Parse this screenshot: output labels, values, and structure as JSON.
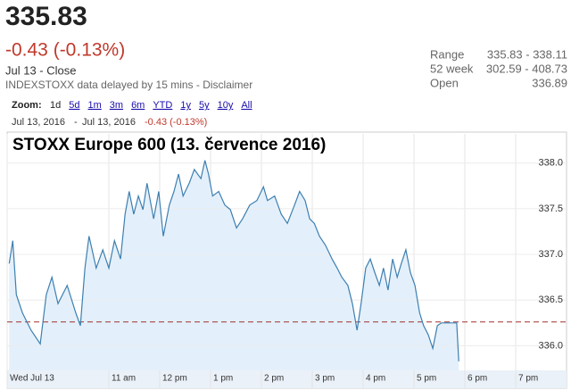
{
  "header": {
    "price": "335.83",
    "change": "-0.43 (-0.13%)",
    "close_label": "Jul 13 - Close",
    "source": "INDEXSTOXX data delayed by 15 mins - ",
    "disclaimer": "Disclaimer",
    "stats": [
      {
        "label": "Range",
        "value": "335.83 - 338.11"
      },
      {
        "label": "52 week",
        "value": "302.59 - 408.73"
      },
      {
        "label": "Open",
        "value": "336.89"
      }
    ]
  },
  "toolbar": {
    "zoom_label": "Zoom:",
    "zoom_options": [
      "1d",
      "5d",
      "1m",
      "3m",
      "6m",
      "YTD",
      "1y",
      "5y",
      "10y",
      "All"
    ],
    "date_from": "Jul 13, 2016",
    "date_sep": "-",
    "date_to": "Jul 13, 2016",
    "change": "-0.43 (-0.13%)"
  },
  "chart_data": {
    "type": "line",
    "title": "STOXX Europe 600 (13. července 2016)",
    "series": [
      {
        "color": "#3d7fb0",
        "x": [
          9.04,
          9.11,
          9.18,
          9.3,
          9.47,
          9.65,
          9.77,
          9.88,
          10.0,
          10.18,
          10.35,
          10.44,
          10.53,
          10.61,
          10.75,
          10.88,
          11.0,
          11.11,
          11.23,
          11.32,
          11.4,
          11.49,
          11.58,
          11.67,
          11.75,
          11.88,
          11.98,
          12.07,
          12.19,
          12.28,
          12.37,
          12.46,
          12.58,
          12.68,
          12.81,
          12.89,
          12.96,
          13.04,
          13.16,
          13.28,
          13.39,
          13.51,
          13.63,
          13.77,
          13.91,
          14.04,
          14.12,
          14.26,
          14.39,
          14.51,
          14.65,
          14.75,
          14.86,
          14.95,
          15.04,
          15.14,
          15.26,
          15.39,
          15.49,
          15.58,
          15.7,
          15.79,
          15.88,
          15.96,
          16.05,
          16.14,
          16.23,
          16.32,
          16.4,
          16.49,
          16.58,
          16.67,
          16.75,
          16.84,
          16.93,
          17.02,
          17.11,
          17.19,
          17.28,
          17.37,
          17.46,
          17.54,
          17.84,
          17.88
        ],
        "values": [
          336.9,
          337.15,
          336.56,
          336.36,
          336.17,
          336.02,
          336.56,
          336.75,
          336.46,
          336.66,
          336.36,
          336.22,
          336.85,
          337.2,
          336.85,
          337.05,
          336.85,
          337.15,
          336.95,
          337.44,
          337.69,
          337.44,
          337.64,
          337.49,
          337.78,
          337.39,
          337.69,
          337.2,
          337.54,
          337.69,
          337.88,
          337.64,
          337.78,
          337.93,
          337.83,
          338.03,
          337.88,
          337.64,
          337.69,
          337.54,
          337.49,
          337.29,
          337.39,
          337.54,
          337.59,
          337.74,
          337.59,
          337.64,
          337.44,
          337.34,
          337.54,
          337.69,
          337.59,
          337.39,
          337.34,
          337.2,
          337.1,
          336.95,
          336.85,
          336.75,
          336.66,
          336.46,
          336.17,
          336.46,
          336.85,
          336.95,
          336.8,
          336.66,
          336.85,
          336.61,
          336.95,
          336.75,
          336.9,
          337.05,
          336.8,
          336.66,
          336.36,
          336.22,
          336.12,
          335.97,
          336.22,
          336.25,
          336.25,
          335.83
        ]
      }
    ],
    "fill_color": "#e3f0fb",
    "reference_line": 336.26,
    "reference_color": "#a0312f",
    "xlim": [
      9,
      20
    ],
    "xticks": [
      {
        "value": 9,
        "label": "Wed Jul 13"
      },
      {
        "value": 11,
        "label": "11 am"
      },
      {
        "value": 12,
        "label": "12 pm"
      },
      {
        "value": 13,
        "label": "1 pm"
      },
      {
        "value": 14,
        "label": "2 pm"
      },
      {
        "value": 15,
        "label": "3 pm"
      },
      {
        "value": 16,
        "label": "4 pm"
      },
      {
        "value": 17,
        "label": "5 pm"
      },
      {
        "value": 18,
        "label": "6 pm"
      },
      {
        "value": 19,
        "label": "7 pm"
      }
    ],
    "ylim": [
      335.73,
      338.32
    ],
    "yticks": [
      {
        "value": 336,
        "label": "336.0"
      },
      336.5,
      {
        "value": 337,
        "label": "337.0"
      },
      337.5,
      {
        "value": 338,
        "label": "338.0"
      }
    ],
    "grid": true
  }
}
